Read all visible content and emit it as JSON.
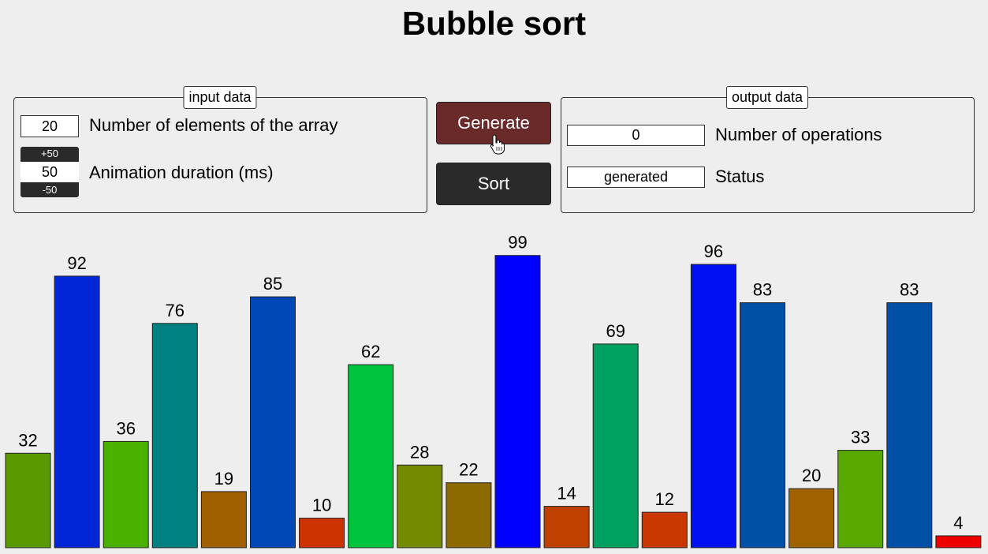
{
  "title": "Bubble sort",
  "input_panel": {
    "legend": "input data",
    "elements_count": "20",
    "elements_label": "Number of elements of the array",
    "duration_plus": "+50",
    "duration_value": "50",
    "duration_minus": "-50",
    "duration_label": "Animation duration (ms)"
  },
  "actions": {
    "generate_label": "Generate",
    "sort_label": "Sort",
    "generate_color": "#6b2a2a",
    "sort_color": "#2a2a2a"
  },
  "output_panel": {
    "legend": "output data",
    "operations_value": "0",
    "operations_label": "Number of operations",
    "status_value": "generated",
    "status_label": "Status"
  },
  "chart_data": {
    "type": "bar",
    "ylim": [
      0,
      100
    ],
    "values": [
      32,
      92,
      36,
      76,
      19,
      85,
      10,
      62,
      28,
      22,
      99,
      14,
      69,
      12,
      96,
      83,
      20,
      33,
      83,
      4
    ],
    "colors": [
      "#5a9a00",
      "#0026d8",
      "#4ab000",
      "#008080",
      "#a06000",
      "#0047b8",
      "#cc3300",
      "#00c43c",
      "#748a00",
      "#8c6a00",
      "#0000ff",
      "#c04000",
      "#00a060",
      "#c83800",
      "#0010f0",
      "#0050a8",
      "#9e6200",
      "#58a800",
      "#0050a8",
      "#ee0000"
    ]
  }
}
